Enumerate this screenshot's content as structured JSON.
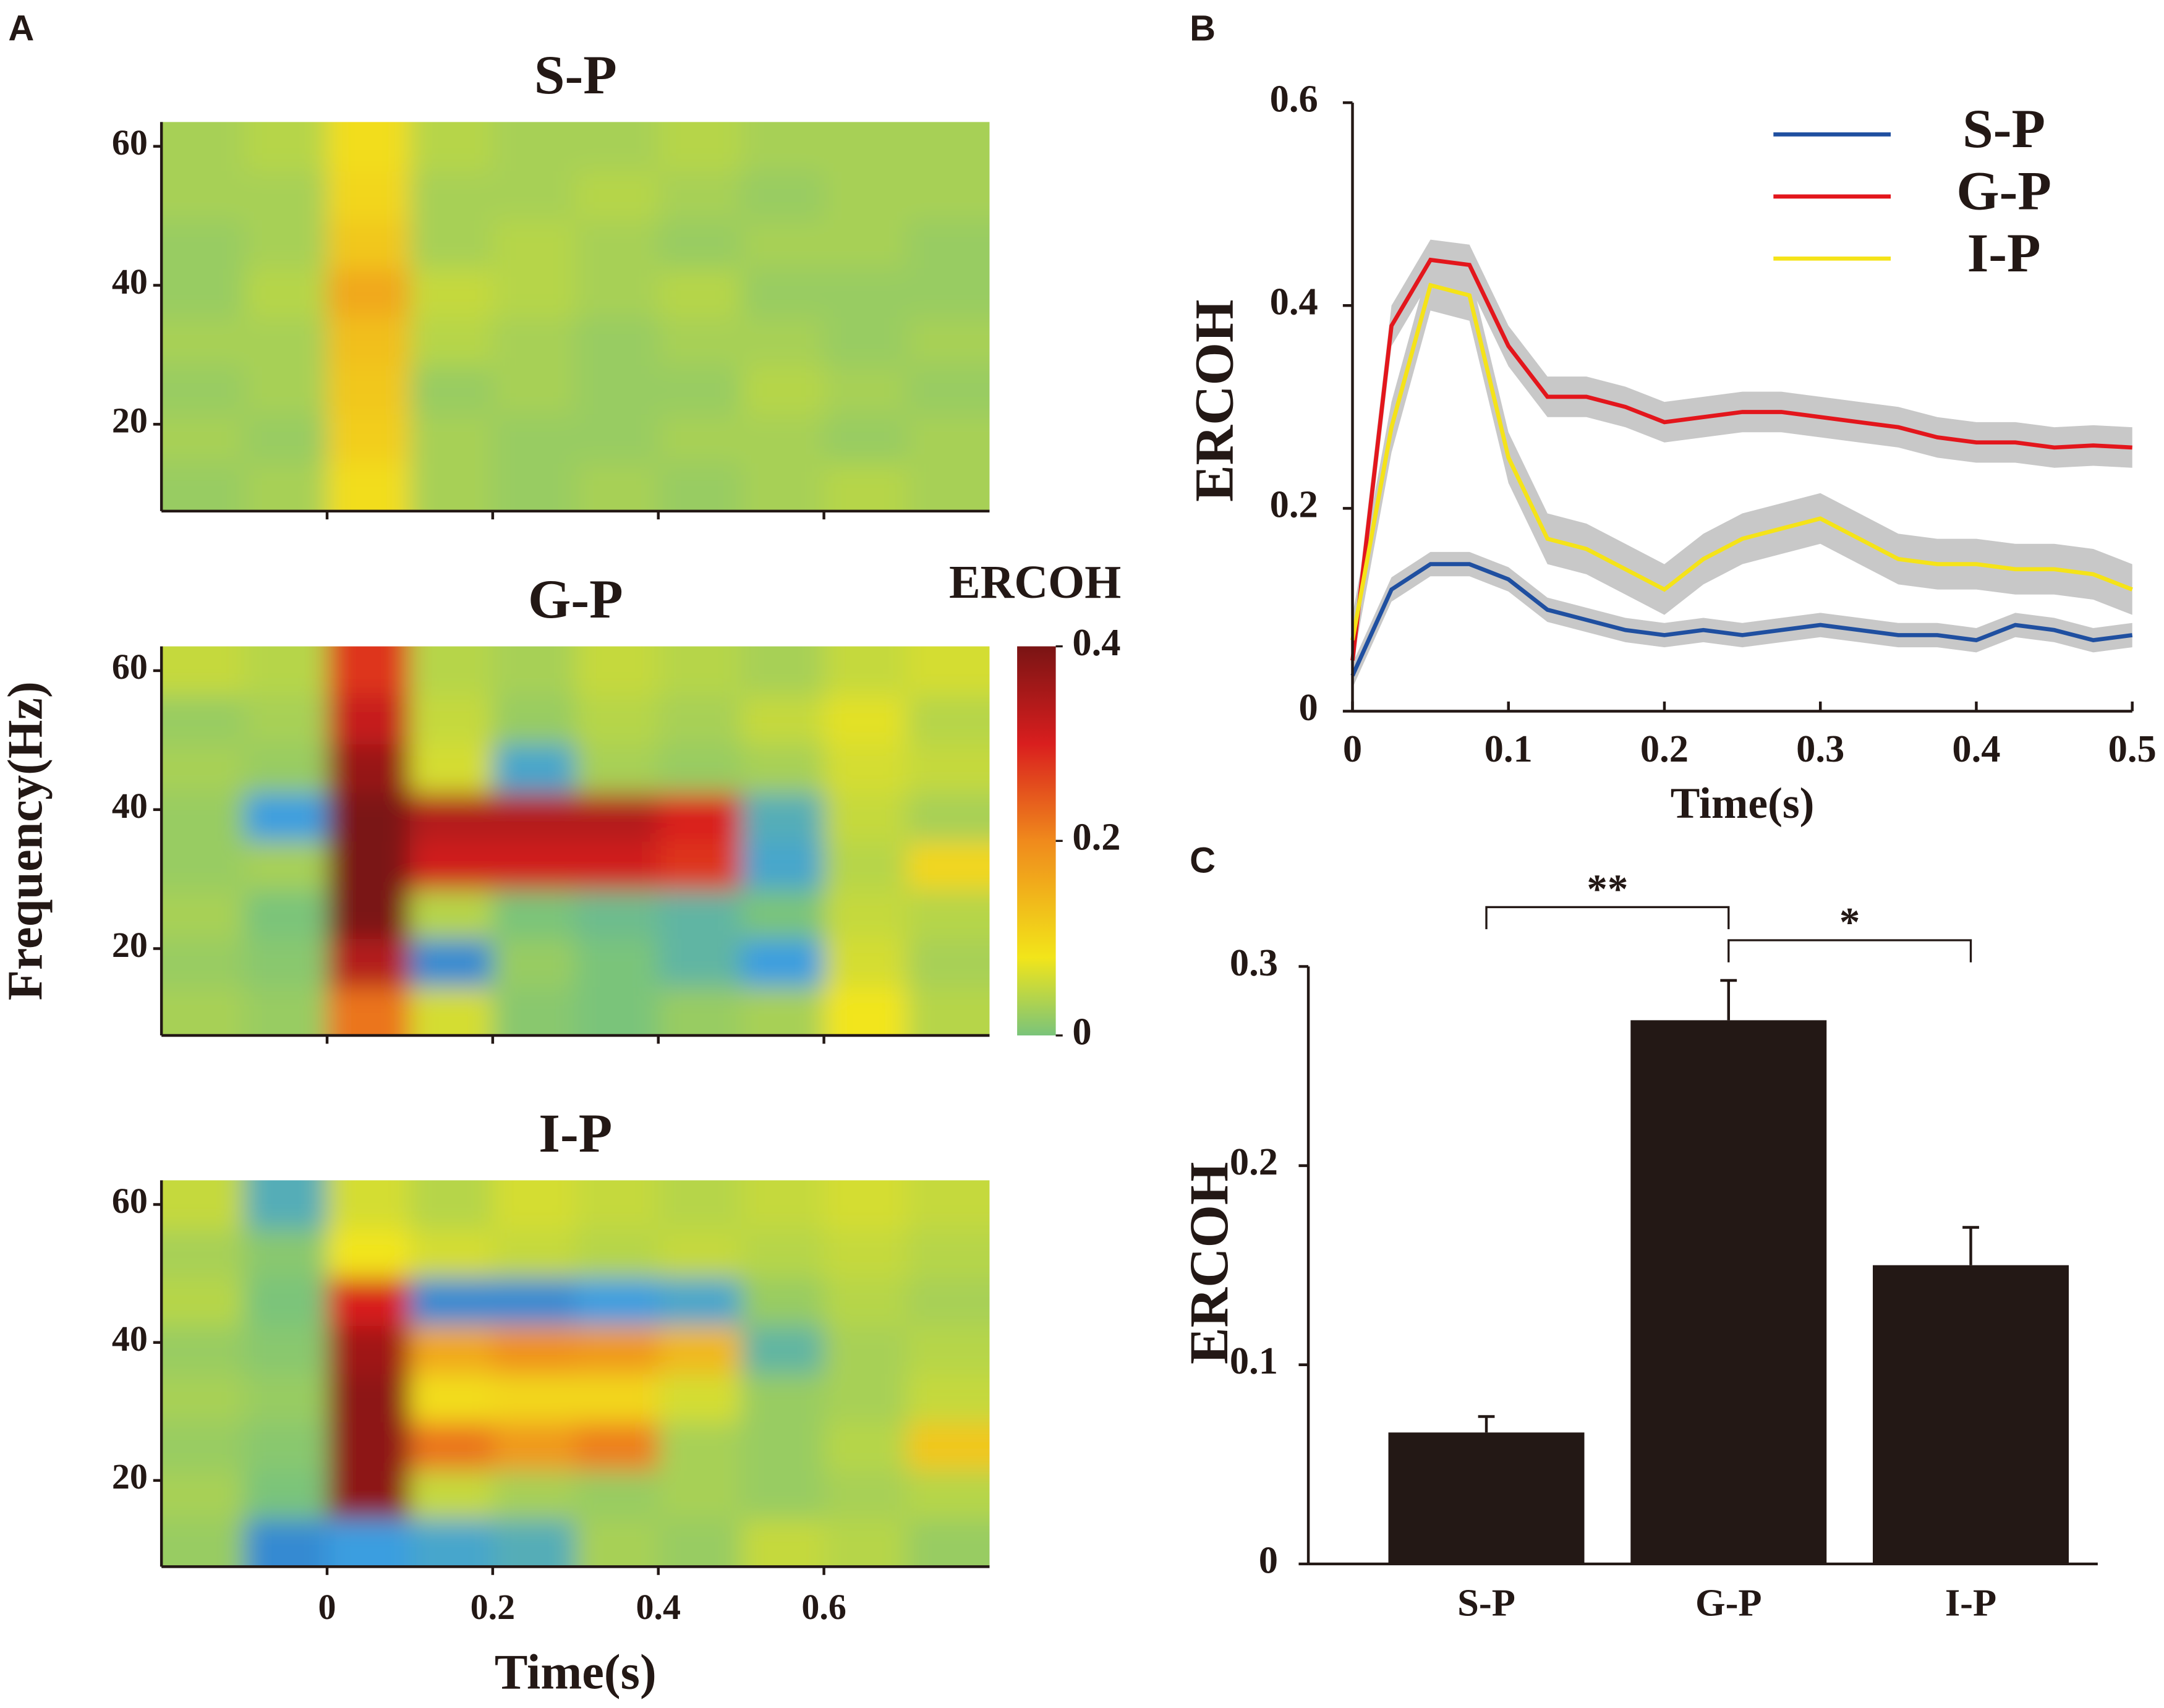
{
  "chart_data": [
    {
      "type": "heatmap",
      "panel": "A",
      "title": "S-P",
      "xlim": [
        -0.2,
        0.8
      ],
      "xticks": [
        0,
        0.2,
        0.4,
        0.6
      ],
      "show_xtick_labels": false,
      "ylim": [
        7.5,
        63.5
      ],
      "yticks": [
        20,
        40,
        60
      ],
      "xbins": [
        -0.2,
        -0.1,
        0,
        0.1,
        0.2,
        0.3,
        0.4,
        0.5,
        0.6,
        0.7,
        0.8
      ],
      "ybins": [
        7.5,
        14.5,
        21.5,
        28.5,
        35.5,
        42.5,
        49.5,
        56.5,
        63.5
      ],
      "z": [
        [
          0.02,
          0.03,
          0.09,
          0.03,
          0.02,
          0.03,
          0.02,
          0.03,
          0.04,
          0.03
        ],
        [
          0.03,
          0.02,
          0.11,
          0.03,
          0.02,
          0.02,
          0.03,
          0.03,
          0.02,
          0.03
        ],
        [
          0.02,
          0.03,
          0.12,
          0.02,
          0.03,
          0.02,
          0.02,
          0.04,
          0.03,
          0.02
        ],
        [
          0.03,
          0.03,
          0.13,
          0.04,
          0.03,
          0.02,
          0.03,
          0.03,
          0.02,
          0.03
        ],
        [
          0.02,
          0.04,
          0.16,
          0.05,
          0.04,
          0.03,
          0.04,
          0.02,
          0.02,
          0.02
        ],
        [
          0.02,
          0.03,
          0.12,
          0.03,
          0.04,
          0.03,
          0.02,
          0.03,
          0.03,
          0.02
        ],
        [
          0.03,
          0.03,
          0.1,
          0.03,
          0.03,
          0.04,
          0.03,
          0.02,
          0.03,
          0.03
        ],
        [
          0.03,
          0.04,
          0.09,
          0.04,
          0.03,
          0.03,
          0.04,
          0.03,
          0.03,
          0.03
        ]
      ]
    },
    {
      "type": "heatmap",
      "title": "G-P",
      "ylabel": "Frequency(Hz)",
      "xlim": [
        -0.2,
        0.8
      ],
      "xticks": [
        0,
        0.2,
        0.4,
        0.6
      ],
      "show_xtick_labels": false,
      "ylim": [
        7.5,
        63.5
      ],
      "yticks": [
        20,
        40,
        60
      ],
      "xbins": [
        -0.2,
        -0.1,
        0,
        0.1,
        0.2,
        0.3,
        0.4,
        0.5,
        0.6,
        0.7,
        0.8
      ],
      "ybins": [
        7.5,
        14.5,
        21.5,
        28.5,
        35.5,
        42.5,
        49.5,
        56.5,
        63.5
      ],
      "z": [
        [
          0.03,
          0.02,
          0.22,
          0.06,
          0.01,
          0.0,
          0.02,
          0.03,
          0.08,
          0.04
        ],
        [
          0.02,
          0.01,
          0.34,
          -0.06,
          0.02,
          0.0,
          -0.02,
          -0.05,
          0.06,
          0.03
        ],
        [
          0.03,
          0.0,
          0.4,
          0.04,
          0.0,
          -0.01,
          -0.02,
          0.0,
          0.05,
          0.04
        ],
        [
          0.02,
          0.03,
          0.4,
          0.31,
          0.31,
          0.31,
          0.28,
          -0.04,
          0.04,
          0.1
        ],
        [
          0.02,
          -0.05,
          0.4,
          0.34,
          0.34,
          0.34,
          0.3,
          -0.03,
          0.05,
          0.03
        ],
        [
          0.03,
          0.02,
          0.37,
          0.06,
          -0.04,
          0.03,
          0.02,
          0.03,
          0.06,
          0.05
        ],
        [
          0.02,
          0.03,
          0.32,
          0.05,
          0.02,
          0.04,
          0.03,
          0.05,
          0.07,
          0.04
        ],
        [
          0.05,
          0.04,
          0.28,
          0.04,
          0.03,
          0.05,
          0.04,
          0.03,
          0.05,
          0.06
        ]
      ],
      "colorbar": {
        "title": "ERCOH",
        "lim": [
          0,
          0.4
        ],
        "ticks": [
          0,
          0.2,
          0.4
        ],
        "colorscale": [
          [
            -0.1,
            "#1b3a9a"
          ],
          [
            -0.05,
            "#3a9ee0"
          ],
          [
            0,
            "#7ac47a"
          ],
          [
            0.08,
            "#f2e51a"
          ],
          [
            0.2,
            "#f08a1c"
          ],
          [
            0.3,
            "#d91e1e"
          ],
          [
            0.4,
            "#7a1414"
          ]
        ]
      }
    },
    {
      "type": "heatmap",
      "title": "I-P",
      "xlabel": "Time(s)",
      "xlim": [
        -0.2,
        0.8
      ],
      "xticks": [
        0,
        0.2,
        0.4,
        0.6
      ],
      "show_xtick_labels": true,
      "ylim": [
        7.5,
        63.5
      ],
      "yticks": [
        20,
        40,
        60
      ],
      "xbins": [
        -0.2,
        -0.1,
        0,
        0.1,
        0.2,
        0.3,
        0.4,
        0.5,
        0.6,
        0.7,
        0.8
      ],
      "ybins": [
        7.5,
        14.5,
        21.5,
        28.5,
        35.5,
        42.5,
        49.5,
        56.5,
        63.5
      ],
      "z": [
        [
          0.02,
          -0.06,
          -0.05,
          -0.04,
          -0.03,
          0.03,
          0.02,
          0.05,
          0.04,
          0.02
        ],
        [
          0.03,
          0.0,
          0.38,
          0.05,
          0.03,
          0.02,
          0.03,
          0.02,
          0.03,
          0.04
        ],
        [
          0.02,
          0.01,
          0.38,
          0.22,
          0.18,
          0.21,
          0.03,
          0.02,
          0.04,
          0.12
        ],
        [
          0.03,
          0.02,
          0.38,
          0.09,
          0.1,
          0.1,
          0.06,
          0.02,
          0.03,
          0.05
        ],
        [
          0.02,
          0.01,
          0.36,
          0.16,
          0.19,
          0.18,
          0.14,
          -0.02,
          0.03,
          0.04
        ],
        [
          0.04,
          0.0,
          0.3,
          -0.06,
          -0.06,
          -0.05,
          -0.04,
          0.02,
          0.04,
          0.03
        ],
        [
          0.03,
          0.01,
          0.08,
          0.06,
          0.05,
          0.04,
          0.05,
          0.04,
          0.05,
          0.04
        ],
        [
          0.05,
          -0.03,
          0.06,
          0.04,
          0.06,
          0.05,
          0.04,
          0.05,
          0.06,
          0.05
        ]
      ]
    },
    {
      "type": "line",
      "panel": "B",
      "xlabel": "Time(s)",
      "ylabel": "ERCOH",
      "xlim": [
        0,
        0.5
      ],
      "xticks": [
        0,
        0.1,
        0.2,
        0.3,
        0.4,
        0.5
      ],
      "ylim": [
        0,
        0.6
      ],
      "yticks": [
        0,
        0.2,
        0.4,
        0.6
      ],
      "band_color": "#c8c8c8",
      "x": [
        0,
        0.025,
        0.05,
        0.075,
        0.1,
        0.125,
        0.15,
        0.175,
        0.2,
        0.225,
        0.25,
        0.275,
        0.3,
        0.325,
        0.35,
        0.375,
        0.4,
        0.425,
        0.45,
        0.475,
        0.5
      ],
      "series": [
        {
          "name": "S-P",
          "color": "#1f4fa0",
          "error": 0.012,
          "values": [
            0.035,
            0.12,
            0.145,
            0.145,
            0.13,
            0.1,
            0.09,
            0.08,
            0.075,
            0.08,
            0.075,
            0.08,
            0.085,
            0.08,
            0.075,
            0.075,
            0.07,
            0.085,
            0.08,
            0.07,
            0.075
          ]
        },
        {
          "name": "G-P",
          "color": "#e3161c",
          "error": 0.02,
          "values": [
            0.05,
            0.38,
            0.445,
            0.44,
            0.36,
            0.31,
            0.31,
            0.3,
            0.285,
            0.29,
            0.295,
            0.295,
            0.29,
            0.285,
            0.28,
            0.27,
            0.265,
            0.265,
            0.26,
            0.262,
            0.26
          ]
        },
        {
          "name": "I-P",
          "color": "#f5e318",
          "error": 0.025,
          "values": [
            0.07,
            0.28,
            0.42,
            0.41,
            0.25,
            0.17,
            0.16,
            0.14,
            0.12,
            0.15,
            0.17,
            0.18,
            0.19,
            0.17,
            0.15,
            0.145,
            0.145,
            0.14,
            0.14,
            0.135,
            0.12
          ]
        }
      ]
    },
    {
      "type": "bar",
      "panel": "C",
      "ylabel": "ERCOH",
      "categories": [
        "S-P",
        "G-P",
        "I-P"
      ],
      "values": [
        0.066,
        0.273,
        0.15
      ],
      "errors": [
        0.008,
        0.02,
        0.019
      ],
      "color": "#231815",
      "ylim": [
        0,
        0.3
      ],
      "yticks": [
        0,
        0.1,
        0.2,
        0.3
      ],
      "annotations": [
        "**",
        "*"
      ]
    }
  ]
}
